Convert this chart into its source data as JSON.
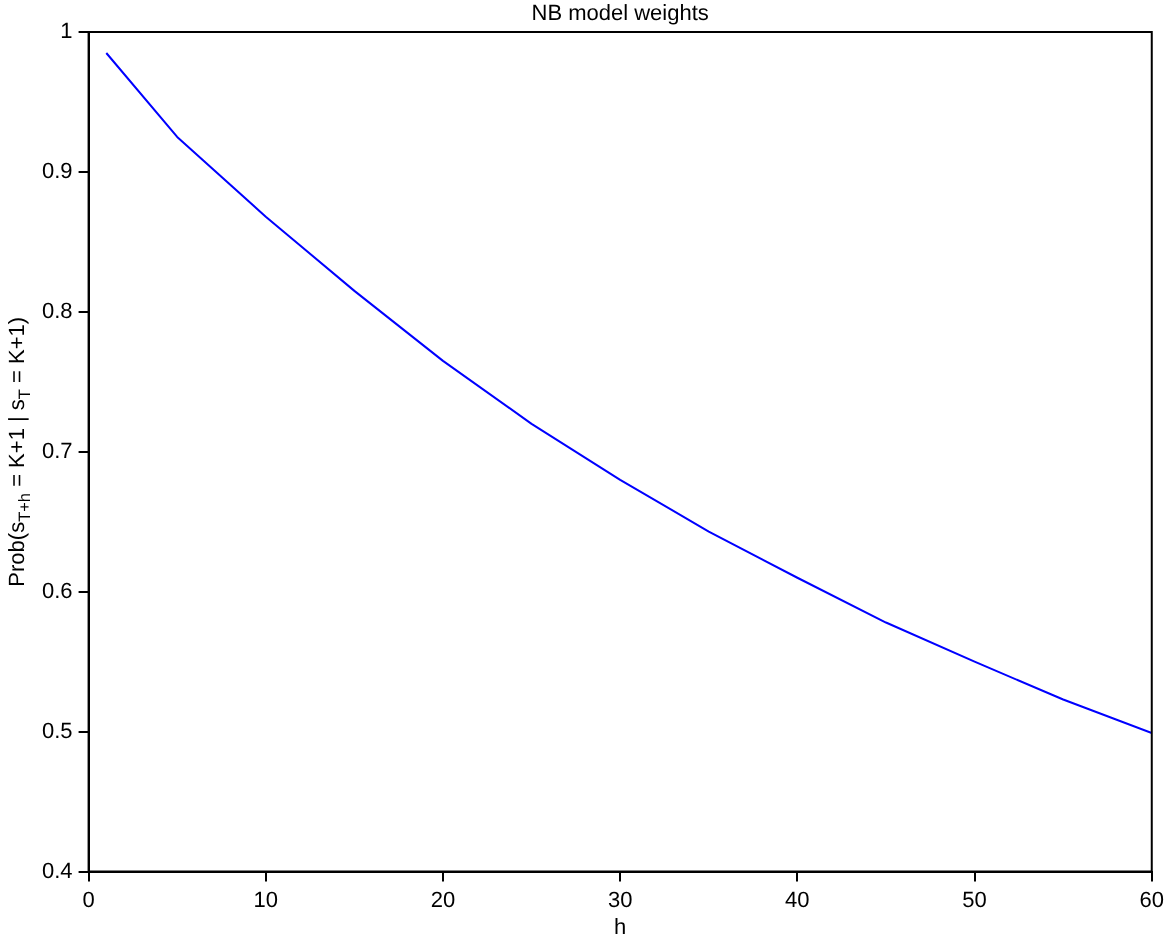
{
  "chart_data": {
    "type": "line",
    "title": "NB model weights",
    "xlabel": "h",
    "ylabel": "Prob(s$_{T+h}$ = K+1 | s$_{T}$ = K+1)",
    "x": [
      1,
      5,
      10,
      15,
      20,
      25,
      30,
      35,
      40,
      45,
      50,
      55,
      60
    ],
    "series": [
      {
        "color": "#0000ff",
        "values": [
          0.985,
          0.925,
          0.868,
          0.815,
          0.765,
          0.72,
          0.68,
          0.643,
          0.61,
          0.578,
          0.55,
          0.523,
          0.499
        ]
      }
    ],
    "xlim": [
      0,
      60
    ],
    "xticks": [
      0,
      10,
      20,
      30,
      40,
      50,
      60
    ],
    "ylim": [
      0.4,
      1
    ],
    "yticks": [
      0.4,
      0.5,
      0.6,
      0.7,
      0.8,
      0.9,
      1
    ],
    "grid": false,
    "legend": false,
    "marker": "none",
    "line_style": "solid"
  }
}
